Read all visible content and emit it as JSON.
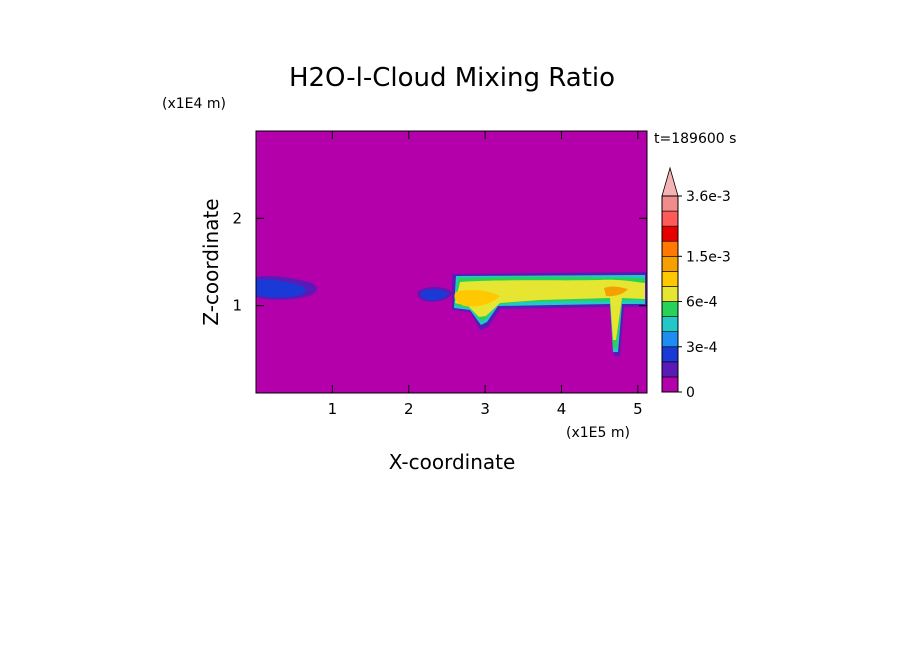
{
  "chart_data": {
    "type": "heatmap",
    "title": "H2O-l-Cloud Mixing Ratio",
    "time_label": "t=189600 s",
    "xlabel": "X-coordinate",
    "ylabel": "Z-coordinate",
    "x_unit": "(x1E5 m)",
    "y_unit": "(x1E4 m)",
    "xlim": [
      0,
      5.12
    ],
    "ylim": [
      0,
      3.0
    ],
    "x_ticks": [
      1,
      2,
      3,
      4,
      5
    ],
    "y_ticks": [
      1,
      2
    ],
    "x_tick_labels": [
      "1",
      "2",
      "3",
      "4",
      "5"
    ],
    "y_tick_labels": [
      "1",
      "2"
    ],
    "background_color": "#b400aa",
    "colorbar": {
      "levels": [
        0,
        0.0001,
        0.0002,
        0.0003,
        0.0004,
        0.0005,
        0.0006,
        0.0009,
        0.0012,
        0.0015,
        0.002,
        0.0025,
        0.003,
        0.0036
      ],
      "colors": [
        "#b400aa",
        "#5a1ab8",
        "#1a3ad8",
        "#1e8cf0",
        "#22c8c8",
        "#28d25a",
        "#e6e632",
        "#ffc800",
        "#f5a000",
        "#ff7800",
        "#e60000",
        "#ff5a5a",
        "#f08c8c",
        "#f5b4b4"
      ],
      "tick_values": [
        0,
        0.0003,
        0.0006,
        0.0015,
        0.0036
      ],
      "tick_labels": [
        "0",
        "3e-4",
        "6e-4",
        "1.5e-3",
        "3.6e-3"
      ],
      "extend": "max"
    }
  }
}
